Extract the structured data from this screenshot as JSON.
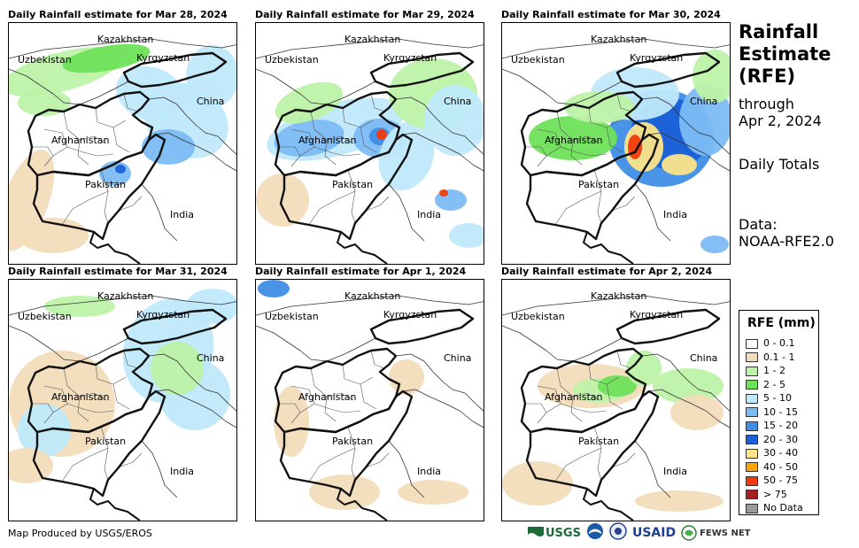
{
  "panels": [
    {
      "title": "Daily Rainfall estimate for Mar 28, 2024"
    },
    {
      "title": "Daily Rainfall estimate for Mar 29, 2024"
    },
    {
      "title": "Daily Rainfall estimate for Mar 30, 2024"
    },
    {
      "title": "Daily Rainfall estimate for Mar 31, 2024"
    },
    {
      "title": "Daily Rainfall estimate for Apr 1, 2024"
    },
    {
      "title": "Daily Rainfall estimate for Apr 2, 2024"
    }
  ],
  "map_labels": {
    "kazakhstan": "Kazakhstan",
    "uzbekistan": "Uzbekistan",
    "kyrgyzstan": "Kyrgyzstan",
    "china": "China",
    "afghanistan": "Afghanistan",
    "pakistan": "Pakistan",
    "india": "India"
  },
  "side": {
    "title_line1": "Rainfall",
    "title_line2": "Estimate",
    "title_line3": "(RFE)",
    "through": "through",
    "through_date": "Apr 2, 2024",
    "totals": "Daily Totals",
    "data_label": "Data:",
    "data_source": "NOAA-RFE2.0"
  },
  "legend": {
    "title": "RFE (mm)",
    "items": [
      {
        "label": "0 - 0.1",
        "color": "#ffffff"
      },
      {
        "label": "0.1 - 1",
        "color": "#f2dcbb"
      },
      {
        "label": "1 - 2",
        "color": "#bdf2a8"
      },
      {
        "label": "2 - 5",
        "color": "#6fe05a"
      },
      {
        "label": "5 - 10",
        "color": "#bfe9fb"
      },
      {
        "label": "10 - 15",
        "color": "#7cbcf4"
      },
      {
        "label": "15 - 20",
        "color": "#3f8ee6"
      },
      {
        "label": "20 - 30",
        "color": "#1c5fd8"
      },
      {
        "label": "30 - 40",
        "color": "#fde48a"
      },
      {
        "label": "40 - 50",
        "color": "#ffa500"
      },
      {
        "label": "50 - 75",
        "color": "#f23a0c"
      },
      {
        "label": "> 75",
        "color": "#a5201f"
      },
      {
        "label": "No Data",
        "color": "#999999"
      }
    ]
  },
  "footer": {
    "credit": "Map Produced by USGS/EROS"
  },
  "logos": {
    "usgs": "USGS",
    "usaid": "USAID",
    "fewsnet": "FEWS NET"
  }
}
